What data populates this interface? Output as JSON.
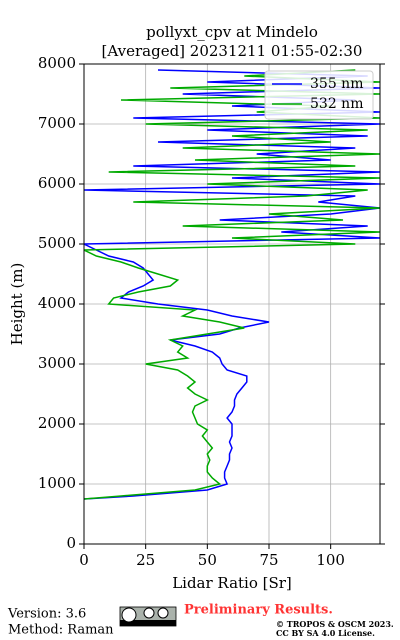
{
  "chart_data": {
    "type": "line",
    "title": "pollyxt_cpv at Mindelo",
    "subtitle": "[Averaged] 20231211 01:55-02:30",
    "x_label": "Lidar Ratio [Sr]",
    "y_label": "Height (m)",
    "y": [
      750,
      800,
      900,
      1000,
      1100,
      1200,
      1300,
      1400,
      1500,
      1600,
      1700,
      1800,
      1900,
      2000,
      2100,
      2200,
      2300,
      2400,
      2500,
      2600,
      2700,
      2800,
      2900,
      3000,
      3100,
      3200,
      3300,
      3400,
      3500,
      3600,
      3700,
      3800,
      3900,
      4000,
      4100,
      4200,
      4300,
      4400,
      4500,
      4600,
      4700,
      4800,
      4900,
      5000,
      5100,
      5200,
      5300,
      5400,
      5500,
      5600,
      5700,
      5800,
      5900,
      6000,
      6100,
      6200,
      6300,
      6400,
      6500,
      6600,
      6700,
      6800,
      6900,
      7000,
      7100,
      7200,
      7300,
      7400,
      7500,
      7600,
      7700,
      7800,
      7900
    ],
    "series": [
      {
        "name": "355 nm",
        "color": "#0000ff",
        "values": [
          0,
          20,
          50,
          58,
          57,
          57,
          58,
          59,
          59,
          60,
          59,
          60,
          60,
          60,
          58,
          60,
          61,
          61,
          62,
          64,
          66,
          66,
          58,
          56,
          55,
          52,
          45,
          35,
          55,
          63,
          75,
          60,
          50,
          30,
          15,
          18,
          24,
          28,
          26,
          24,
          20,
          10,
          5,
          0,
          120,
          80,
          115,
          55,
          100,
          120,
          95,
          110,
          0,
          120,
          60,
          120,
          20,
          100,
          70,
          110,
          30,
          115,
          50,
          120,
          20,
          120,
          60,
          110,
          40,
          120,
          50,
          115,
          30
        ]
      },
      {
        "name": "532 nm",
        "color": "#00aa00",
        "values": [
          0,
          15,
          45,
          55,
          52,
          50,
          50,
          51,
          50,
          52,
          50,
          48,
          50,
          46,
          45,
          44,
          45,
          50,
          45,
          42,
          45,
          42,
          38,
          25,
          42,
          38,
          40,
          35,
          50,
          65,
          55,
          40,
          45,
          10,
          12,
          22,
          35,
          38,
          30,
          22,
          15,
          5,
          0,
          110,
          60,
          120,
          40,
          105,
          75,
          120,
          20,
          90,
          115,
          50,
          120,
          10,
          110,
          45,
          120,
          40,
          100,
          60,
          115,
          25,
          120,
          70,
          100,
          15,
          120,
          35,
          120,
          65,
          110
        ]
      }
    ],
    "xlim": [
      0,
      120
    ],
    "xticks": [
      0,
      25,
      50,
      75,
      100
    ],
    "ylim": [
      0,
      8000
    ],
    "yticks": [
      0,
      1000,
      2000,
      3000,
      4000,
      5000,
      6000,
      7000,
      8000
    ],
    "grid": true,
    "legend": "upper right"
  },
  "footer": {
    "version": "Version: 3.6",
    "method": "Method: Raman",
    "notice": "Preliminary Results.",
    "copyright": "© TROPOS & OSCM 2023.",
    "license": "CC BY SA 4.0 License."
  }
}
